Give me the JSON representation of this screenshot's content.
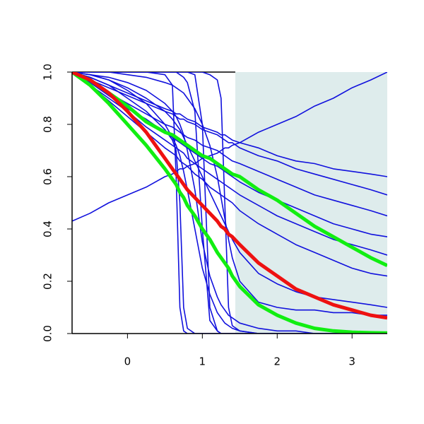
{
  "chart_data": {
    "type": "line",
    "x": [
      -0.74,
      -0.5,
      -0.25,
      0,
      0.25,
      0.5,
      0.6,
      0.65,
      0.7,
      0.75,
      0.8,
      0.9,
      1,
      1.1,
      1.2,
      1.25,
      1.3,
      1.35,
      1.4,
      1.5,
      1.75,
      2,
      2.25,
      2.5,
      2.75,
      3,
      3.25,
      3.47
    ],
    "xlim": [
      -0.74,
      3.47
    ],
    "ylim": [
      0,
      1
    ],
    "xticks": [
      0,
      1,
      2,
      3
    ],
    "yticks": [
      {
        "value": 0,
        "label": "0.0"
      },
      {
        "value": 0.2,
        "label": "0.2"
      },
      {
        "value": 0.4,
        "label": "0.4"
      },
      {
        "value": 0.6,
        "label": "0.6"
      },
      {
        "value": 0.8,
        "label": "0.8"
      },
      {
        "value": 1,
        "label": "1.0"
      }
    ],
    "shaded_x": [
      1.44,
      3.47
    ],
    "shade_color": "#deecec",
    "series": [
      {
        "color": "#1111dd",
        "width": 1.6,
        "values": [
          0.43,
          0.46,
          0.5,
          0.53,
          0.56,
          0.6,
          0.61,
          0.62,
          0.63,
          0.63,
          0.64,
          0.65,
          0.67,
          0.68,
          0.69,
          0.7,
          0.71,
          0.71,
          0.72,
          0.73,
          0.77,
          0.8,
          0.83,
          0.87,
          0.9,
          0.94,
          0.97,
          1.0
        ]
      },
      {
        "color": "#1111dd",
        "width": 1.6,
        "values": [
          1,
          1,
          1,
          1,
          1,
          0.99,
          0.95,
          0.6,
          0.1,
          0.01,
          0,
          0,
          0,
          0,
          0,
          0,
          0,
          0,
          0,
          0,
          0,
          0,
          0,
          0,
          0,
          0,
          0,
          0
        ]
      },
      {
        "color": "#1111dd",
        "width": 1.6,
        "values": [
          1,
          0.98,
          0.95,
          0.9,
          0.85,
          0.78,
          0.74,
          0.7,
          0.5,
          0.1,
          0.02,
          0,
          0,
          0,
          0,
          0,
          0,
          0,
          0,
          0,
          0,
          0,
          0,
          0,
          0,
          0,
          0,
          0
        ]
      },
      {
        "color": "#1111dd",
        "width": 1.6,
        "values": [
          1,
          1,
          1,
          1,
          1,
          1,
          1,
          1,
          0.99,
          0.98,
          0.96,
          0.85,
          0.4,
          0.05,
          0.01,
          0,
          0,
          0,
          0,
          0,
          0,
          0,
          0,
          0,
          0,
          0,
          0,
          0
        ]
      },
      {
        "color": "#1111dd",
        "width": 1.6,
        "values": [
          1,
          1,
          1,
          1,
          1,
          1,
          1,
          1,
          1,
          1,
          1,
          0.99,
          0.8,
          0.1,
          0.01,
          0,
          0,
          0,
          0,
          0,
          0,
          0,
          0,
          0,
          0,
          0,
          0,
          0
        ]
      },
      {
        "color": "#1111dd",
        "width": 1.6,
        "values": [
          1,
          1,
          1,
          1,
          1,
          1,
          1,
          1,
          1,
          1,
          1,
          1,
          1,
          0.99,
          0.97,
          0.9,
          0.5,
          0.1,
          0.03,
          0.01,
          0,
          0,
          0,
          0,
          0,
          0,
          0,
          0
        ]
      },
      {
        "color": "#1111dd",
        "width": 1.6,
        "values": [
          1,
          0.99,
          0.97,
          0.93,
          0.88,
          0.8,
          0.75,
          0.72,
          0.68,
          0.62,
          0.55,
          0.4,
          0.25,
          0.15,
          0.08,
          0.06,
          0.04,
          0.03,
          0.02,
          0.01,
          0,
          0,
          0,
          0,
          0,
          0,
          0,
          0
        ]
      },
      {
        "color": "#1111dd",
        "width": 1.6,
        "values": [
          1,
          0.98,
          0.95,
          0.92,
          0.89,
          0.86,
          0.85,
          0.84,
          0.84,
          0.83,
          0.82,
          0.81,
          0.79,
          0.78,
          0.77,
          0.76,
          0.76,
          0.75,
          0.74,
          0.73,
          0.71,
          0.68,
          0.66,
          0.65,
          0.63,
          0.62,
          0.61,
          0.6
        ]
      },
      {
        "color": "#1111dd",
        "width": 1.6,
        "values": [
          1,
          0.97,
          0.94,
          0.91,
          0.88,
          0.85,
          0.84,
          0.83,
          0.82,
          0.82,
          0.81,
          0.8,
          0.78,
          0.77,
          0.76,
          0.75,
          0.74,
          0.73,
          0.73,
          0.71,
          0.68,
          0.66,
          0.63,
          0.61,
          0.59,
          0.57,
          0.55,
          0.53
        ]
      },
      {
        "color": "#1111dd",
        "width": 1.6,
        "values": [
          1,
          0.96,
          0.92,
          0.88,
          0.84,
          0.8,
          0.79,
          0.78,
          0.77,
          0.76,
          0.75,
          0.74,
          0.72,
          0.71,
          0.7,
          0.69,
          0.68,
          0.67,
          0.66,
          0.65,
          0.62,
          0.59,
          0.56,
          0.53,
          0.51,
          0.49,
          0.47,
          0.45
        ]
      },
      {
        "color": "#1111dd",
        "width": 1.6,
        "values": [
          1,
          0.96,
          0.91,
          0.86,
          0.82,
          0.77,
          0.75,
          0.74,
          0.73,
          0.72,
          0.71,
          0.69,
          0.67,
          0.65,
          0.64,
          0.63,
          0.62,
          0.61,
          0.6,
          0.58,
          0.54,
          0.51,
          0.48,
          0.45,
          0.42,
          0.4,
          0.38,
          0.37
        ]
      },
      {
        "color": "#1111dd",
        "width": 1.6,
        "values": [
          1,
          0.95,
          0.9,
          0.85,
          0.79,
          0.74,
          0.72,
          0.71,
          0.7,
          0.69,
          0.67,
          0.65,
          0.63,
          0.61,
          0.59,
          0.58,
          0.57,
          0.56,
          0.55,
          0.53,
          0.49,
          0.45,
          0.42,
          0.39,
          0.36,
          0.34,
          0.32,
          0.3
        ]
      },
      {
        "color": "#1111dd",
        "width": 1.6,
        "values": [
          1,
          0.95,
          0.89,
          0.83,
          0.77,
          0.71,
          0.69,
          0.68,
          0.66,
          0.65,
          0.64,
          0.61,
          0.59,
          0.56,
          0.54,
          0.53,
          0.52,
          0.51,
          0.5,
          0.47,
          0.42,
          0.38,
          0.34,
          0.31,
          0.28,
          0.25,
          0.23,
          0.22
        ]
      },
      {
        "color": "#1111dd",
        "width": 1.6,
        "values": [
          1,
          0.99,
          0.97,
          0.94,
          0.9,
          0.85,
          0.82,
          0.8,
          0.78,
          0.75,
          0.72,
          0.66,
          0.6,
          0.54,
          0.48,
          0.45,
          0.42,
          0.39,
          0.36,
          0.31,
          0.23,
          0.19,
          0.16,
          0.14,
          0.13,
          0.12,
          0.11,
          0.1
        ]
      },
      {
        "color": "#1111dd",
        "width": 1.6,
        "values": [
          1,
          1,
          1,
          0.99,
          0.98,
          0.96,
          0.95,
          0.94,
          0.93,
          0.92,
          0.9,
          0.86,
          0.8,
          0.72,
          0.6,
          0.52,
          0.44,
          0.36,
          0.29,
          0.2,
          0.12,
          0.1,
          0.09,
          0.09,
          0.08,
          0.08,
          0.07,
          0.07
        ]
      },
      {
        "color": "#1111dd",
        "width": 1.6,
        "values": [
          1,
          0.99,
          0.98,
          0.96,
          0.93,
          0.88,
          0.85,
          0.83,
          0.8,
          0.76,
          0.7,
          0.55,
          0.35,
          0.22,
          0.14,
          0.11,
          0.09,
          0.07,
          0.06,
          0.04,
          0.02,
          0.01,
          0.01,
          0,
          0,
          0,
          0,
          0
        ]
      },
      {
        "color": "#11ee11",
        "width": 5,
        "values": [
          1,
          0.95,
          0.88,
          0.8,
          0.72,
          0.63,
          0.59,
          0.57,
          0.54,
          0.52,
          0.49,
          0.45,
          0.4,
          0.36,
          0.31,
          0.29,
          0.27,
          0.25,
          0.22,
          0.18,
          0.11,
          0.07,
          0.04,
          0.02,
          0.01,
          0.005,
          0.003,
          0.002
        ]
      },
      {
        "color": "#11ee11",
        "width": 5,
        "values": [
          1,
          0.97,
          0.92,
          0.87,
          0.81,
          0.77,
          0.76,
          0.75,
          0.74,
          0.73,
          0.72,
          0.7,
          0.68,
          0.67,
          0.65,
          0.64,
          0.63,
          0.62,
          0.61,
          0.6,
          0.55,
          0.51,
          0.46,
          0.41,
          0.37,
          0.33,
          0.29,
          0.26
        ]
      },
      {
        "color": "#ee1111",
        "width": 5,
        "values": [
          1,
          0.97,
          0.92,
          0.85,
          0.77,
          0.67,
          0.63,
          0.61,
          0.59,
          0.57,
          0.55,
          0.52,
          0.49,
          0.46,
          0.43,
          0.41,
          0.4,
          0.38,
          0.37,
          0.34,
          0.27,
          0.22,
          0.17,
          0.14,
          0.11,
          0.09,
          0.07,
          0.06
        ]
      }
    ]
  }
}
